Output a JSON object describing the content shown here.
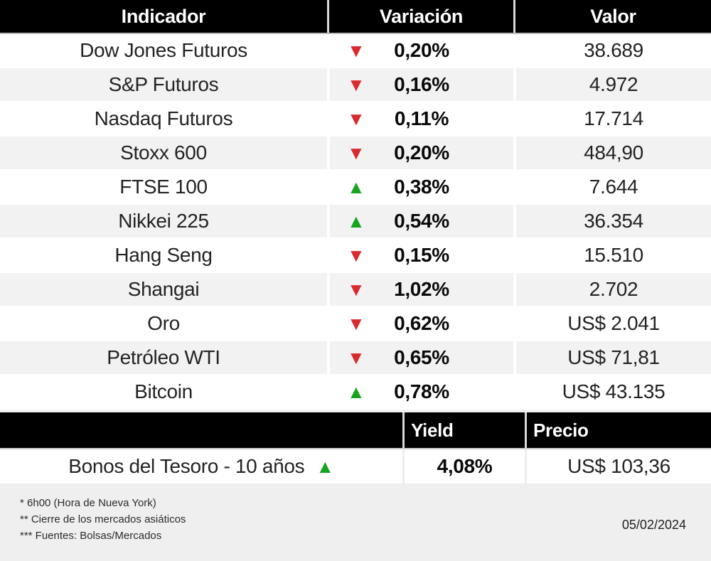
{
  "table": {
    "headers": [
      "Indicador",
      "Variación",
      "Valor"
    ],
    "rows": [
      {
        "indicator": "Dow Jones Futuros",
        "direction": "down",
        "arrow": "▼",
        "variation": "0,20%",
        "value": "38.689"
      },
      {
        "indicator": "S&P Futuros",
        "direction": "down",
        "arrow": "▼",
        "variation": "0,16%",
        "value": "4.972"
      },
      {
        "indicator": "Nasdaq Futuros",
        "direction": "down",
        "arrow": "▼",
        "variation": "0,11%",
        "value": "17.714"
      },
      {
        "indicator": "Stoxx 600",
        "direction": "down",
        "arrow": "▼",
        "variation": "0,20%",
        "value": "484,90"
      },
      {
        "indicator": "FTSE 100",
        "direction": "up",
        "arrow": "▲",
        "variation": "0,38%",
        "value": "7.644"
      },
      {
        "indicator": "Nikkei 225",
        "direction": "up",
        "arrow": "▲",
        "variation": "0,54%",
        "value": "36.354"
      },
      {
        "indicator": "Hang Seng",
        "direction": "down",
        "arrow": "▼",
        "variation": "0,15%",
        "value": "15.510"
      },
      {
        "indicator": "Shangai",
        "direction": "down",
        "arrow": "▼",
        "variation": "1,02%",
        "value": "2.702"
      },
      {
        "indicator": "Oro",
        "direction": "down",
        "arrow": "▼",
        "variation": "0,62%",
        "value": "US$ 2.041"
      },
      {
        "indicator": "Petróleo WTI",
        "direction": "down",
        "arrow": "▼",
        "variation": "0,65%",
        "value": "US$ 71,81"
      },
      {
        "indicator": "Bitcoin",
        "direction": "up",
        "arrow": "▲",
        "variation": "0,78%",
        "value": "US$ 43.135"
      }
    ]
  },
  "bonds": {
    "headers": {
      "yield": "Yield",
      "price": "Precio"
    },
    "row": {
      "indicator": "Bonos del Tesoro - 10 años",
      "direction": "up",
      "arrow": "▲",
      "yield": "4,08%",
      "price": "US$ 103,36"
    }
  },
  "footer": {
    "notes": [
      "* 6h00 (Hora de Nueva York)",
      "** Cierre de los mercados asiáticos",
      "*** Fuentes: Bolsas/Mercados"
    ],
    "date": "05/02/2024"
  },
  "colors": {
    "up": "#16a51e",
    "down": "#d92a2d",
    "header_bg": "#000000",
    "row_alt_bg": "#f2f2f2",
    "footer_bg": "#efefef"
  },
  "chart_data": [
    {
      "type": "table",
      "columns": [
        "Indicador",
        "Variación",
        "Valor"
      ],
      "rows": [
        [
          "Dow Jones Futuros",
          "-0,20%",
          "38.689"
        ],
        [
          "S&P Futuros",
          "-0,16%",
          "4.972"
        ],
        [
          "Nasdaq Futuros",
          "-0,11%",
          "17.714"
        ],
        [
          "Stoxx 600",
          "-0,20%",
          "484,90"
        ],
        [
          "FTSE 100",
          "+0,38%",
          "7.644"
        ],
        [
          "Nikkei 225",
          "+0,54%",
          "36.354"
        ],
        [
          "Hang Seng",
          "-0,15%",
          "15.510"
        ],
        [
          "Shangai",
          "-1,02%",
          "2.702"
        ],
        [
          "Oro",
          "-0,62%",
          "US$ 2.041"
        ],
        [
          "Petróleo WTI",
          "-0,65%",
          "US$ 71,81"
        ],
        [
          "Bitcoin",
          "+0,78%",
          "US$ 43.135"
        ]
      ]
    },
    {
      "type": "table",
      "columns": [
        "",
        "Yield",
        "Precio"
      ],
      "rows": [
        [
          "Bonos del Tesoro - 10 años",
          "+4,08%",
          "US$ 103,36"
        ]
      ]
    }
  ]
}
